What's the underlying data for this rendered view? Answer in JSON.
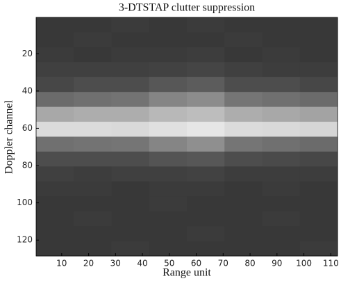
{
  "chart_data": {
    "type": "heatmap",
    "title": "3-DTSTAP clutter suppression",
    "xlabel": "Range unit",
    "ylabel": "Doppler channel",
    "x_edges": [
      0.5,
      14.5,
      28.5,
      42.5,
      56.5,
      70.5,
      84.5,
      98.5,
      112.5
    ],
    "y_edges": [
      0.5,
      8.5,
      16.5,
      24.5,
      32.5,
      40.5,
      48.5,
      56.5,
      64.5,
      72.5,
      80.5,
      88.5,
      96.5,
      104.5,
      112.5,
      120.5,
      128.5
    ],
    "z": [
      [
        0.22,
        0.22,
        0.23,
        0.22,
        0.23,
        0.22,
        0.22,
        0.22
      ],
      [
        0.22,
        0.23,
        0.22,
        0.22,
        0.22,
        0.23,
        0.22,
        0.22
      ],
      [
        0.23,
        0.22,
        0.23,
        0.23,
        0.24,
        0.22,
        0.23,
        0.22
      ],
      [
        0.25,
        0.25,
        0.25,
        0.26,
        0.27,
        0.25,
        0.24,
        0.24
      ],
      [
        0.28,
        0.3,
        0.3,
        0.34,
        0.36,
        0.3,
        0.3,
        0.28
      ],
      [
        0.42,
        0.44,
        0.45,
        0.52,
        0.55,
        0.46,
        0.44,
        0.42
      ],
      [
        0.66,
        0.68,
        0.68,
        0.72,
        0.74,
        0.68,
        0.66,
        0.64
      ],
      [
        0.86,
        0.86,
        0.85,
        0.88,
        0.9,
        0.86,
        0.85,
        0.84
      ],
      [
        0.44,
        0.45,
        0.46,
        0.52,
        0.56,
        0.46,
        0.44,
        0.42
      ],
      [
        0.3,
        0.3,
        0.3,
        0.33,
        0.34,
        0.3,
        0.29,
        0.28
      ],
      [
        0.25,
        0.24,
        0.25,
        0.25,
        0.26,
        0.24,
        0.24,
        0.24
      ],
      [
        0.23,
        0.23,
        0.22,
        0.23,
        0.23,
        0.22,
        0.23,
        0.22
      ],
      [
        0.22,
        0.22,
        0.22,
        0.23,
        0.22,
        0.22,
        0.22,
        0.22
      ],
      [
        0.22,
        0.23,
        0.22,
        0.22,
        0.22,
        0.22,
        0.23,
        0.22
      ],
      [
        0.22,
        0.22,
        0.22,
        0.22,
        0.23,
        0.22,
        0.22,
        0.22
      ],
      [
        0.22,
        0.22,
        0.23,
        0.22,
        0.22,
        0.22,
        0.22,
        0.23
      ]
    ],
    "clim": [
      0,
      1
    ],
    "xlim": [
      0.5,
      112.5
    ],
    "ylim": [
      0.5,
      128.5
    ],
    "y_reversed": true,
    "xticks": [
      10,
      20,
      30,
      40,
      50,
      60,
      70,
      80,
      90,
      100,
      110
    ],
    "yticks": [
      20,
      40,
      60,
      80,
      100,
      120
    ]
  }
}
